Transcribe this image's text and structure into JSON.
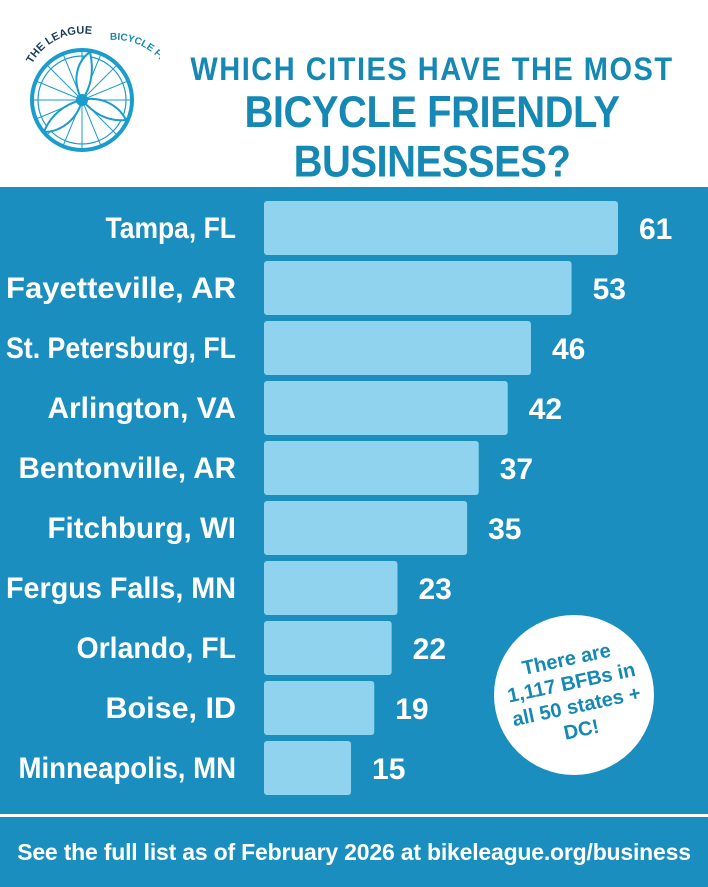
{
  "logo": {
    "arc_top": "THE LEAGUE",
    "arc_side": "BICYCLE FRIENDLY AMERICA"
  },
  "header": {
    "title_line1": "WHICH CITIES HAVE THE MOST",
    "title_line2": "BICYCLE FRIENDLY BUSINESSES?"
  },
  "chart_data": {
    "type": "bar",
    "orientation": "horizontal",
    "title": "WHICH CITIES HAVE THE MOST BICYCLE FRIENDLY BUSINESSES?",
    "categories": [
      "Tampa, FL",
      "Fayetteville, AR",
      "St. Petersburg, FL",
      "Arlington, VA",
      "Bentonville, AR",
      "Fitchburg, WI",
      "Fergus Falls, MN",
      "Orlando, FL",
      "Boise, ID",
      "Minneapolis, MN"
    ],
    "values": [
      61,
      53,
      46,
      42,
      37,
      35,
      23,
      22,
      19,
      15
    ],
    "xlabel": "",
    "ylabel": "",
    "xlim": [
      0,
      61
    ],
    "grid": false,
    "legend": "none"
  },
  "callout": {
    "text": "There are 1,117 BFBs in all 50 states + DC!"
  },
  "footer": {
    "text": "See the full list as of February 2026 at bikeleague.org/business"
  },
  "colors": {
    "panel_bg": "#1a8fbf",
    "bar_fill": "#8fd3ee",
    "title": "#1688b4",
    "white": "#ffffff"
  }
}
